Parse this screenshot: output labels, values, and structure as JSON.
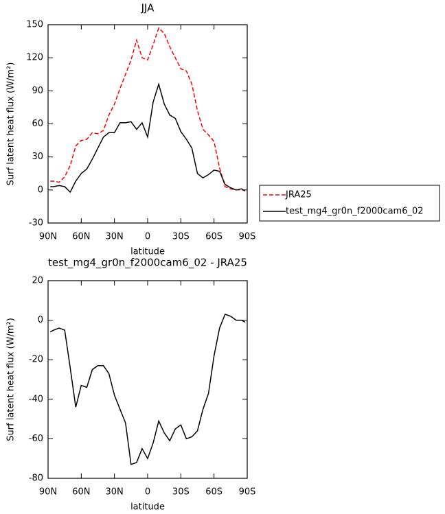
{
  "chart_data": [
    {
      "type": "line",
      "title": "JJA",
      "x_label": "latitude",
      "y_label": "Surf latent heat flux (W/m²)",
      "x": [
        88,
        85,
        80,
        75,
        70,
        65,
        60,
        55,
        50,
        45,
        40,
        35,
        30,
        25,
        20,
        15,
        10,
        5,
        0,
        -5,
        -10,
        -15,
        -20,
        -25,
        -30,
        -35,
        -40,
        -45,
        -50,
        -55,
        -60,
        -65,
        -70,
        -75,
        -80,
        -85,
        -88
      ],
      "series": [
        {
          "name": "JRA25",
          "color": "#ff0000",
          "dashed": true,
          "values": [
            8,
            8,
            7,
            12,
            22,
            40,
            45,
            46,
            52,
            51,
            54,
            68,
            78,
            92,
            105,
            118,
            136,
            120,
            118,
            132,
            147,
            142,
            130,
            120,
            110,
            108,
            96,
            72,
            55,
            50,
            44,
            20,
            3,
            1,
            0,
            0,
            0
          ]
        },
        {
          "name": "test_mg4_gr0n_f2000cam6_02",
          "color": "#000000",
          "dashed": false,
          "values": [
            3,
            3,
            4,
            3,
            -2,
            8,
            15,
            19,
            28,
            38,
            48,
            52,
            52,
            61,
            61,
            62,
            55,
            61,
            48,
            80,
            96,
            78,
            68,
            65,
            53,
            46,
            38,
            15,
            11,
            14,
            18,
            17,
            5,
            2,
            0,
            1,
            -1
          ]
        }
      ],
      "xlim": [
        90,
        -90
      ],
      "xticks": [
        {
          "value": 90,
          "label": "90N"
        },
        {
          "value": 60,
          "label": "60N"
        },
        {
          "value": 30,
          "label": "30N"
        },
        0,
        {
          "value": -30,
          "label": "30S"
        },
        {
          "value": -60,
          "label": "60S"
        },
        {
          "value": -90,
          "label": "90S"
        }
      ],
      "ylim": [
        -30,
        150
      ],
      "yticks": [
        -30,
        0,
        30,
        60,
        90,
        120,
        150
      ],
      "legend": "right"
    },
    {
      "type": "line",
      "title": "test_mg4_gr0n_f2000cam6_02 - JRA25",
      "x_label": "latitude",
      "y_label": "Surf latent heat flux (W/m²)",
      "x": [
        88,
        85,
        80,
        75,
        70,
        65,
        60,
        55,
        50,
        45,
        40,
        35,
        30,
        25,
        20,
        15,
        10,
        5,
        0,
        -5,
        -10,
        -15,
        -20,
        -25,
        -30,
        -35,
        -40,
        -45,
        -50,
        -55,
        -60,
        -65,
        -70,
        -75,
        -80,
        -85,
        -88
      ],
      "series": [
        {
          "color": "#000000",
          "dashed": false,
          "values": [
            -6,
            -5,
            -4,
            -5,
            -24,
            -44,
            -33,
            -34,
            -25,
            -23,
            -23,
            -27,
            -38,
            -45,
            -52,
            -73,
            -72,
            -65,
            -70,
            -62,
            -51,
            -57,
            -61,
            -55,
            -53,
            -60,
            -59,
            -56,
            -45,
            -37,
            -18,
            -4,
            3,
            2,
            0,
            0,
            -1
          ]
        }
      ],
      "xlim": [
        90,
        -90
      ],
      "xticks": [
        {
          "value": 90,
          "label": "90N"
        },
        {
          "value": 60,
          "label": "60N"
        },
        {
          "value": 30,
          "label": "30N"
        },
        0,
        {
          "value": -30,
          "label": "30S"
        },
        {
          "value": -60,
          "label": "60S"
        },
        {
          "value": -90,
          "label": "90S"
        }
      ],
      "ylim": [
        -80,
        20
      ],
      "yticks": [
        -80,
        -60,
        -40,
        -20,
        0,
        20
      ]
    }
  ]
}
